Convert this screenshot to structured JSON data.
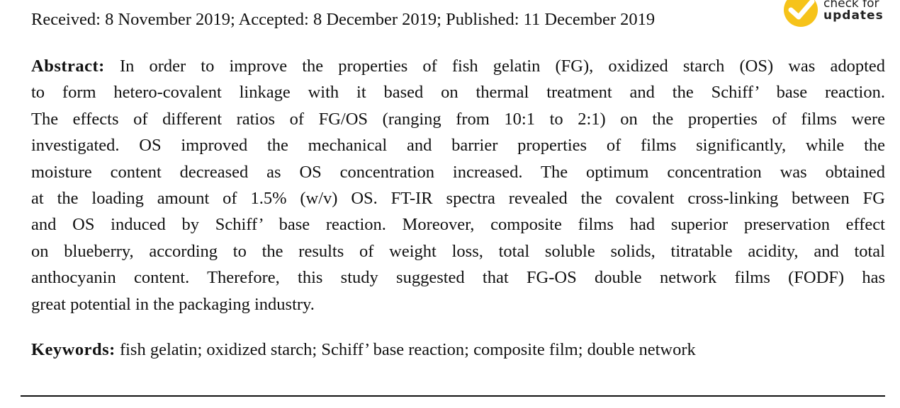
{
  "received_line": "Received: 8 November 2019; Accepted: 8 December 2019; Published: 11 December 2019",
  "logo": {
    "line1": "check for",
    "line2": "updates",
    "color": "#f6c31a"
  },
  "abstract": {
    "label": "Abstract:",
    "lines": [
      "In order to improve the properties of fish gelatin (FG), oxidized starch (OS) was adopted",
      "to form hetero-covalent linkage with it based on thermal treatment and the Schiff’ base reaction.",
      "The effects of different ratios of FG/OS (ranging from 10:1 to 2:1) on the properties of films were",
      "investigated.  OS improved the mechanical and barrier properties of films significantly, while the",
      "moisture content decreased as OS concentration increased.  The optimum concentration was obtained",
      "at the loading amount of 1.5% (w/v) OS. FT-IR spectra revealed the covalent cross-linking between FG",
      "and OS induced by Schiff’ base reaction. Moreover, composite films had superior preservation effect",
      "on blueberry, according to the results of weight loss, total soluble solids, titratable acidity, and total",
      "anthocyanin content.  Therefore, this study suggested that FG-OS double network films (FODF) has",
      "great potential in the packaging industry."
    ]
  },
  "keywords": {
    "label": "Keywords:",
    "text": "fish gelatin; oxidized starch; Schiff’ base reaction; composite film; double network"
  }
}
